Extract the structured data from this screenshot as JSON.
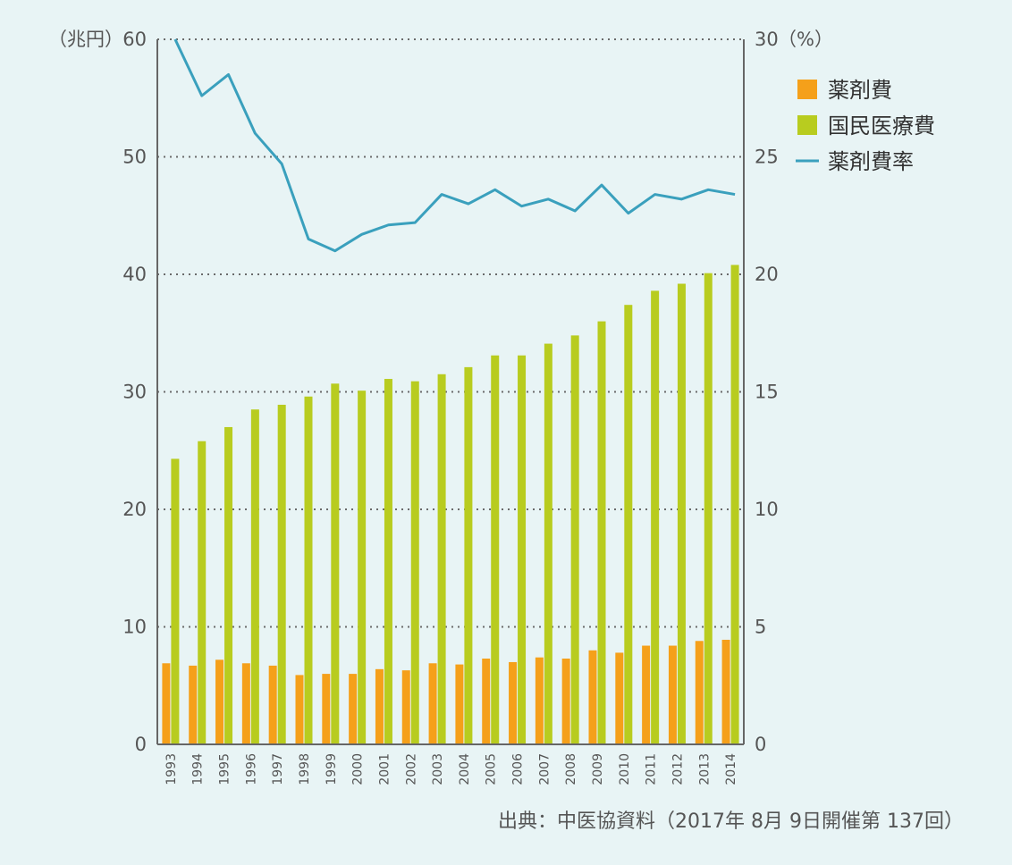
{
  "chart_data": {
    "type": "bar",
    "left_unit": "（兆円）",
    "right_unit": "（%）",
    "left_ticks": [
      "0",
      "10",
      "20",
      "30",
      "40",
      "50",
      "60"
    ],
    "right_ticks": [
      "0",
      "5",
      "10",
      "15",
      "20",
      "25",
      "30"
    ],
    "ylim_left": [
      0,
      60
    ],
    "ylim_right": [
      0,
      30
    ],
    "grid": "dotted",
    "legend_position": "top-right",
    "categories": [
      "1993",
      "1994",
      "1995",
      "1996",
      "1997",
      "1998",
      "1999",
      "2000",
      "2001",
      "2002",
      "2003",
      "2004",
      "2005",
      "2006",
      "2007",
      "2008",
      "2009",
      "2010",
      "2011",
      "2012",
      "2013",
      "2014"
    ],
    "series": [
      {
        "name": "薬剤費",
        "type": "bar",
        "axis": "left",
        "color": "#f5a01a",
        "values": [
          6.9,
          6.7,
          7.2,
          6.9,
          6.7,
          5.9,
          6.0,
          6.0,
          6.4,
          6.3,
          6.9,
          6.8,
          7.3,
          7.0,
          7.4,
          7.3,
          8.0,
          7.8,
          8.4,
          8.4,
          8.8,
          8.9
        ]
      },
      {
        "name": "国民医療費",
        "type": "bar",
        "axis": "left",
        "color": "#b8cc1f",
        "values": [
          24.3,
          25.8,
          27.0,
          28.5,
          28.9,
          29.6,
          30.7,
          30.1,
          31.1,
          30.9,
          31.5,
          32.1,
          33.1,
          33.1,
          34.1,
          34.8,
          36.0,
          37.4,
          38.6,
          39.2,
          40.1,
          40.8
        ]
      },
      {
        "name": "薬剤費率",
        "type": "line",
        "axis": "right",
        "color": "#3aa0bd",
        "values": [
          30.0,
          27.6,
          28.5,
          26.0,
          24.7,
          21.5,
          21.0,
          21.7,
          22.1,
          22.2,
          23.4,
          23.0,
          23.6,
          22.9,
          23.2,
          22.7,
          23.8,
          22.6,
          23.4,
          23.2,
          23.6,
          23.4
        ]
      }
    ],
    "source": "出典：中医協資料（2017年 8月 9日開催第 137回）"
  }
}
